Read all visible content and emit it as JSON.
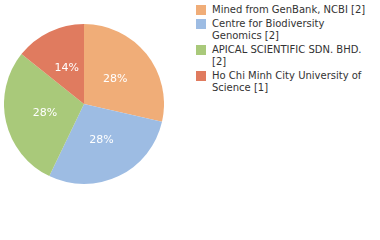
{
  "chart_data": {
    "type": "pie",
    "categories": [
      "Mined from GenBank, NCBI [2]",
      "Centre for Biodiversity Genomics [2]",
      "APICAL SCIENTIFIC SDN. BHD. [2]",
      "Ho Chi Minh City University of Science [1]"
    ],
    "values": [
      28,
      28,
      28,
      14
    ],
    "value_labels": [
      "28%",
      "28%",
      "28%",
      "14%"
    ],
    "colors": [
      "#f0ad78",
      "#9dbce3",
      "#a9c97a",
      "#e07b5f"
    ],
    "data_labels": true,
    "legend": "top-right"
  }
}
